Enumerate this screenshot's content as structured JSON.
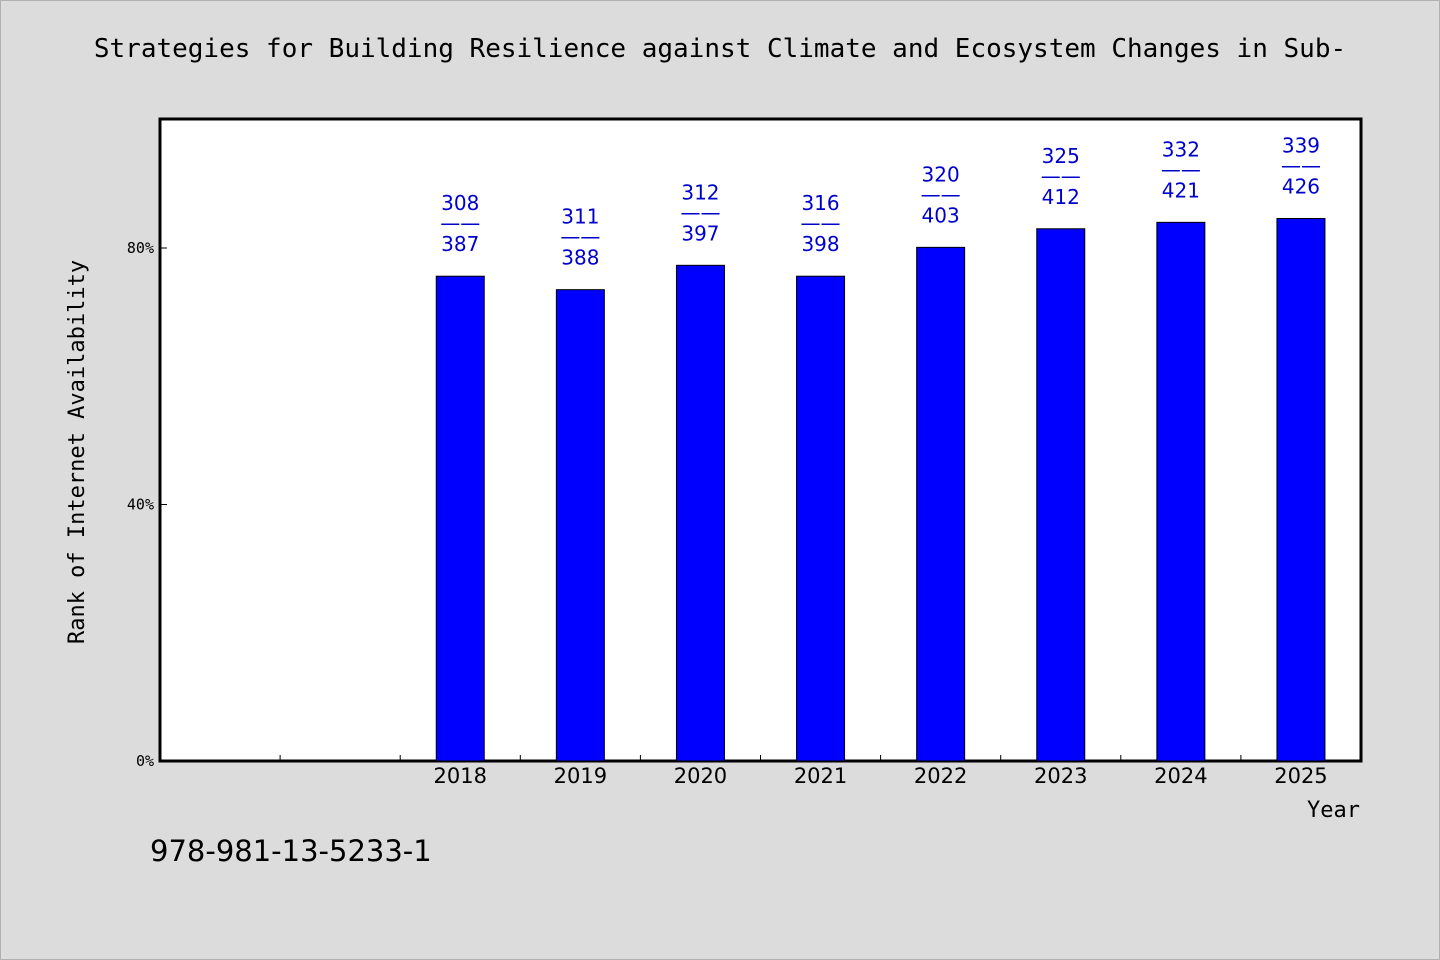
{
  "chart_data": {
    "type": "bar",
    "title": "Strategies for Building Resilience against Climate and Ecosystem Changes in Sub-",
    "xlabel": "Year",
    "ylabel": "Rank of Internet Availability",
    "categories": [
      "",
      "",
      "2018",
      "2019",
      "2020",
      "2021",
      "2022",
      "2023",
      "2024",
      "2025"
    ],
    "series": [
      {
        "color": "#0000ff",
        "values": [
          null,
          null,
          75.6,
          73.5,
          77.3,
          75.6,
          80.1,
          83.0,
          84.0,
          84.6
        ]
      }
    ],
    "data_labels": [
      null,
      null,
      {
        "top": "308",
        "sep": "——",
        "bottom": "387"
      },
      {
        "top": "311",
        "sep": "——",
        "bottom": "388"
      },
      {
        "top": "312",
        "sep": "——",
        "bottom": "397"
      },
      {
        "top": "316",
        "sep": "——",
        "bottom": "398"
      },
      {
        "top": "320",
        "sep": "——",
        "bottom": "403"
      },
      {
        "top": "325",
        "sep": "——",
        "bottom": "412"
      },
      {
        "top": "332",
        "sep": "——",
        "bottom": "421"
      },
      {
        "top": "339",
        "sep": "——",
        "bottom": "426"
      }
    ],
    "ylim": [
      0,
      100
    ],
    "yticks": [
      0,
      40,
      80
    ],
    "ytick_labels": [
      "0%",
      "40%",
      "80%"
    ],
    "grid": false,
    "legend": "none",
    "label_color": "#0000cc",
    "background": "#dcdcdc",
    "plot_background": "#ffffff"
  },
  "footer": {
    "code": "978-981-13-5233-1"
  }
}
